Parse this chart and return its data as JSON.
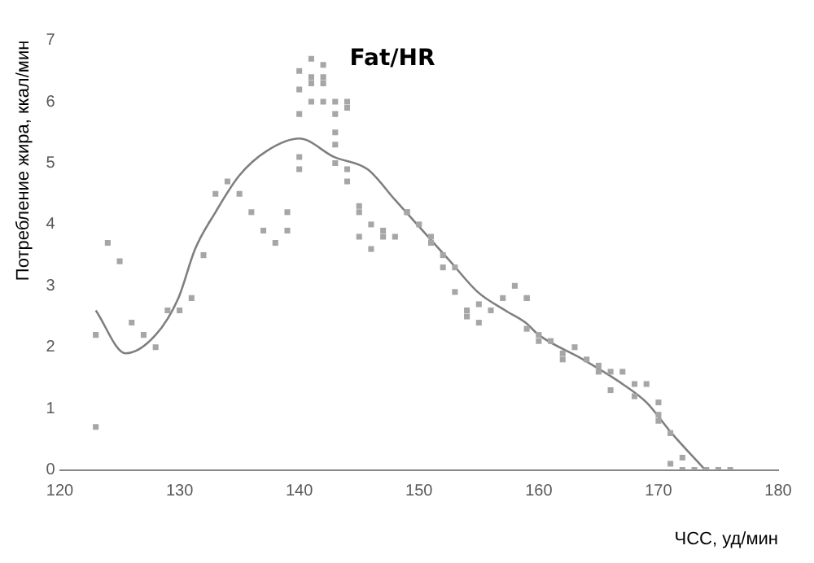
{
  "chart_data": {
    "type": "scatter",
    "title": "Fat/HR",
    "xlabel": "ЧСС, уд/мин",
    "ylabel": "Потребление жира, ккал/мин",
    "xlim": [
      120,
      180
    ],
    "xticks": [
      120,
      130,
      140,
      150,
      160,
      170,
      180
    ],
    "ylim": [
      0,
      7
    ],
    "yticks": [
      0,
      1,
      2,
      3,
      4,
      5,
      6,
      7
    ],
    "grid": false,
    "marker": "square",
    "series": [
      {
        "type": "scatter",
        "color": "#a6a6a6",
        "x": [
          123,
          123,
          124,
          125,
          126,
          127,
          128,
          129,
          130,
          131,
          132,
          133,
          134,
          135,
          136,
          137,
          138,
          139,
          139,
          140,
          140,
          140,
          140,
          140,
          141,
          141,
          141,
          141,
          142,
          142,
          142,
          142,
          143,
          143,
          143,
          143,
          143,
          144,
          144,
          144,
          144,
          145,
          145,
          145,
          146,
          146,
          147,
          147,
          148,
          149,
          149,
          150,
          151,
          151,
          152,
          152,
          153,
          153,
          154,
          154,
          155,
          155,
          156,
          157,
          158,
          159,
          159,
          159,
          160,
          160,
          161,
          162,
          162,
          163,
          164,
          165,
          165,
          166,
          166,
          167,
          168,
          168,
          169,
          170,
          170,
          170,
          171,
          171,
          172,
          172,
          173,
          174,
          175,
          176
        ],
        "values": [
          0.7,
          2.2,
          3.7,
          3.4,
          2.4,
          2.2,
          2.0,
          2.6,
          2.6,
          2.8,
          3.5,
          4.5,
          4.7,
          4.5,
          4.2,
          3.9,
          3.7,
          4.2,
          3.9,
          6.5,
          6.2,
          5.8,
          5.1,
          4.9,
          6.7,
          6.4,
          6.3,
          6.0,
          6.6,
          6.4,
          6.3,
          6.0,
          6.0,
          5.8,
          5.5,
          5.3,
          5.0,
          6.0,
          5.9,
          4.9,
          4.7,
          4.3,
          4.2,
          3.8,
          4.0,
          3.6,
          3.9,
          3.8,
          3.8,
          4.2,
          4.2,
          4.0,
          3.8,
          3.7,
          3.5,
          3.3,
          3.3,
          2.9,
          2.6,
          2.5,
          2.7,
          2.4,
          2.6,
          2.8,
          3.0,
          2.8,
          2.8,
          2.3,
          2.2,
          2.1,
          2.1,
          1.9,
          1.8,
          2.0,
          1.8,
          1.7,
          1.6,
          1.6,
          1.3,
          1.6,
          1.4,
          1.2,
          1.4,
          1.1,
          0.9,
          0.8,
          0.6,
          0.1,
          0.2,
          0,
          0,
          0,
          0,
          0
        ]
      },
      {
        "type": "line",
        "color": "#7f7f7f",
        "marker": "none",
        "x": [
          123,
          125.5,
          128,
          129.9,
          131.3,
          133,
          135,
          137.3,
          140,
          142.9,
          145.7,
          148,
          150.3,
          152.6,
          154.9,
          157.2,
          158.9,
          160,
          163.7,
          167,
          169,
          171.1,
          173.9
        ],
        "values": [
          2.6,
          1.9,
          2.2,
          2.8,
          3.6,
          4.2,
          4.8,
          5.2,
          5.4,
          5.1,
          4.9,
          4.4,
          3.9,
          3.4,
          2.9,
          2.6,
          2.4,
          2.2,
          1.8,
          1.4,
          1.1,
          0.6,
          0
        ]
      }
    ]
  }
}
